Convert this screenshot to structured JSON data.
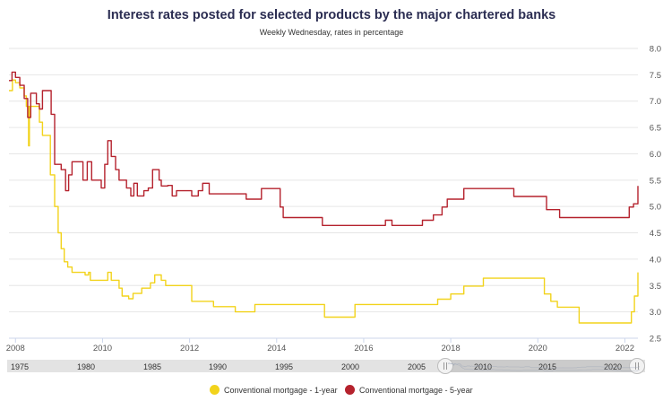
{
  "chart_data": {
    "type": "line",
    "title": "Interest rates posted for selected products by the major chartered banks",
    "subtitle": "Weekly Wednesday, rates in percentage",
    "xlabel": "",
    "ylabel": "",
    "xlim": [
      2007.85,
      2022.3
    ],
    "ylim": [
      2.5,
      8.0
    ],
    "y_ticks": [
      "2.5",
      "3.0",
      "3.5",
      "4.0",
      "4.5",
      "5.0",
      "5.5",
      "6.0",
      "6.5",
      "7.0",
      "7.5",
      "8.0"
    ],
    "x_ticks": [
      "2008",
      "2010",
      "2012",
      "2014",
      "2016",
      "2018",
      "2020",
      "2022"
    ],
    "grid": true,
    "legend_position": "bottom",
    "series": [
      {
        "name": "Conventional mortgage - 1-year",
        "color": "#f2d31c",
        "points": [
          [
            2007.85,
            7.2
          ],
          [
            2007.93,
            7.4
          ],
          [
            2008.0,
            7.35
          ],
          [
            2008.1,
            7.25
          ],
          [
            2008.2,
            7.1
          ],
          [
            2008.25,
            6.9
          ],
          [
            2008.3,
            6.15
          ],
          [
            2008.32,
            6.9
          ],
          [
            2008.45,
            6.9
          ],
          [
            2008.55,
            6.6
          ],
          [
            2008.62,
            6.35
          ],
          [
            2008.75,
            6.35
          ],
          [
            2008.8,
            5.6
          ],
          [
            2008.9,
            5.0
          ],
          [
            2008.98,
            4.5
          ],
          [
            2009.05,
            4.2
          ],
          [
            2009.12,
            3.95
          ],
          [
            2009.2,
            3.85
          ],
          [
            2009.3,
            3.75
          ],
          [
            2009.6,
            3.7
          ],
          [
            2009.68,
            3.75
          ],
          [
            2009.72,
            3.6
          ],
          [
            2010.05,
            3.6
          ],
          [
            2010.12,
            3.75
          ],
          [
            2010.2,
            3.6
          ],
          [
            2010.38,
            3.45
          ],
          [
            2010.45,
            3.3
          ],
          [
            2010.6,
            3.25
          ],
          [
            2010.7,
            3.35
          ],
          [
            2010.9,
            3.45
          ],
          [
            2011.1,
            3.55
          ],
          [
            2011.2,
            3.7
          ],
          [
            2011.35,
            3.6
          ],
          [
            2011.45,
            3.5
          ],
          [
            2011.95,
            3.5
          ],
          [
            2012.05,
            3.2
          ],
          [
            2012.5,
            3.2
          ],
          [
            2012.55,
            3.1
          ],
          [
            2012.9,
            3.1
          ],
          [
            2013.05,
            3.0
          ],
          [
            2013.45,
            3.0
          ],
          [
            2013.5,
            3.14
          ],
          [
            2015.05,
            3.14
          ],
          [
            2015.1,
            2.9
          ],
          [
            2015.75,
            2.9
          ],
          [
            2015.8,
            3.14
          ],
          [
            2017.65,
            3.14
          ],
          [
            2017.7,
            3.24
          ],
          [
            2017.95,
            3.24
          ],
          [
            2018.0,
            3.34
          ],
          [
            2018.25,
            3.34
          ],
          [
            2018.3,
            3.49
          ],
          [
            2018.7,
            3.49
          ],
          [
            2018.75,
            3.64
          ],
          [
            2020.1,
            3.64
          ],
          [
            2020.15,
            3.34
          ],
          [
            2020.3,
            3.2
          ],
          [
            2020.45,
            3.09
          ],
          [
            2020.9,
            3.09
          ],
          [
            2020.95,
            2.79
          ],
          [
            2022.05,
            2.79
          ],
          [
            2022.15,
            3.0
          ],
          [
            2022.22,
            3.3
          ],
          [
            2022.3,
            3.75
          ]
        ]
      },
      {
        "name": "Conventional mortgage - 5-year",
        "color": "#b5222d",
        "points": [
          [
            2007.85,
            7.39
          ],
          [
            2007.92,
            7.55
          ],
          [
            2008.0,
            7.45
          ],
          [
            2008.1,
            7.3
          ],
          [
            2008.2,
            7.05
          ],
          [
            2008.28,
            6.69
          ],
          [
            2008.35,
            7.15
          ],
          [
            2008.48,
            6.95
          ],
          [
            2008.55,
            6.85
          ],
          [
            2008.62,
            7.2
          ],
          [
            2008.75,
            7.2
          ],
          [
            2008.82,
            6.75
          ],
          [
            2008.9,
            5.8
          ],
          [
            2009.05,
            5.7
          ],
          [
            2009.15,
            5.3
          ],
          [
            2009.22,
            5.6
          ],
          [
            2009.3,
            5.85
          ],
          [
            2009.5,
            5.85
          ],
          [
            2009.55,
            5.5
          ],
          [
            2009.65,
            5.85
          ],
          [
            2009.75,
            5.5
          ],
          [
            2009.9,
            5.5
          ],
          [
            2009.97,
            5.35
          ],
          [
            2010.05,
            5.8
          ],
          [
            2010.12,
            6.25
          ],
          [
            2010.2,
            5.95
          ],
          [
            2010.3,
            5.7
          ],
          [
            2010.38,
            5.5
          ],
          [
            2010.55,
            5.35
          ],
          [
            2010.65,
            5.2
          ],
          [
            2010.72,
            5.44
          ],
          [
            2010.8,
            5.2
          ],
          [
            2010.95,
            5.3
          ],
          [
            2011.05,
            5.35
          ],
          [
            2011.15,
            5.7
          ],
          [
            2011.3,
            5.5
          ],
          [
            2011.35,
            5.39
          ],
          [
            2011.5,
            5.4
          ],
          [
            2011.6,
            5.2
          ],
          [
            2011.7,
            5.3
          ],
          [
            2011.95,
            5.3
          ],
          [
            2012.05,
            5.2
          ],
          [
            2012.2,
            5.3
          ],
          [
            2012.3,
            5.44
          ],
          [
            2012.45,
            5.24
          ],
          [
            2013.2,
            5.24
          ],
          [
            2013.3,
            5.14
          ],
          [
            2013.6,
            5.14
          ],
          [
            2013.65,
            5.34
          ],
          [
            2014.0,
            5.34
          ],
          [
            2014.08,
            4.99
          ],
          [
            2014.15,
            4.79
          ],
          [
            2014.95,
            4.79
          ],
          [
            2015.05,
            4.64
          ],
          [
            2016.45,
            4.64
          ],
          [
            2016.5,
            4.74
          ],
          [
            2016.65,
            4.64
          ],
          [
            2017.3,
            4.64
          ],
          [
            2017.35,
            4.74
          ],
          [
            2017.55,
            4.74
          ],
          [
            2017.6,
            4.84
          ],
          [
            2017.75,
            4.84
          ],
          [
            2017.8,
            4.99
          ],
          [
            2017.92,
            5.14
          ],
          [
            2018.25,
            5.14
          ],
          [
            2018.3,
            5.34
          ],
          [
            2019.4,
            5.34
          ],
          [
            2019.45,
            5.19
          ],
          [
            2020.1,
            5.19
          ],
          [
            2020.2,
            4.94
          ],
          [
            2020.45,
            4.94
          ],
          [
            2020.5,
            4.79
          ],
          [
            2022.0,
            4.79
          ],
          [
            2022.1,
            4.99
          ],
          [
            2022.2,
            5.05
          ],
          [
            2022.3,
            5.39
          ]
        ]
      }
    ]
  },
  "navigator": {
    "labels": [
      "1975",
      "1980",
      "1985",
      "1990",
      "1995",
      "2000",
      "2005",
      "2010",
      "2015",
      "2020"
    ]
  },
  "legend": {
    "item1": "Conventional mortgage - 1-year",
    "item2": "Conventional mortgage - 5-year"
  }
}
